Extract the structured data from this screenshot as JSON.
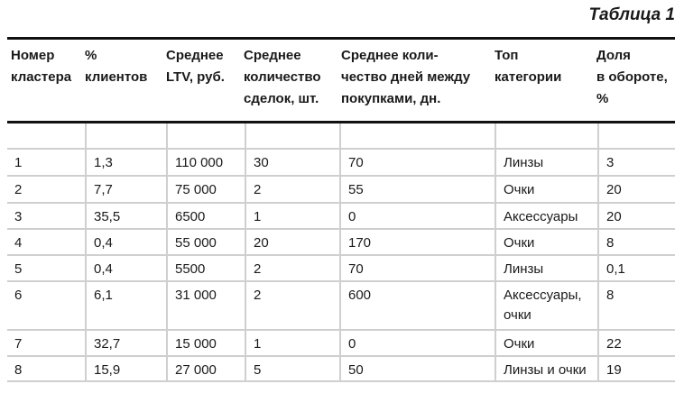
{
  "caption": "Таблица 1",
  "headers": [
    "Номер\nкластера",
    "%\nклиентов",
    "Среднее\nLTV, руб.",
    "Среднее\nколичество\nсделок, шт.",
    "Среднее коли-\nчество дней между\nпокупками, дн.",
    "Топ\nкатегории",
    "Доля\nв обороте,\n%"
  ],
  "rows": [
    [
      "",
      "",
      "",
      "",
      "",
      "",
      ""
    ],
    [
      "1",
      "1,3",
      "110 000",
      "30",
      "70",
      "Линзы",
      "3"
    ],
    [
      "2",
      "7,7",
      "75 000",
      "2",
      "55",
      "Очки",
      "20"
    ],
    [
      "3",
      "35,5",
      "6500",
      "1",
      "0",
      "Аксессуары",
      "20"
    ],
    [
      "4",
      "0,4",
      "55 000",
      "20",
      "170",
      "Очки",
      "8"
    ],
    [
      "5",
      "0,4",
      "5500",
      "2",
      "70",
      "Линзы",
      "0,1"
    ],
    [
      "6",
      "6,1",
      "31 000",
      "2",
      "600",
      "Аксессуары,\nочки",
      "8"
    ],
    [
      "7",
      "32,7",
      "15 000",
      "1",
      "0",
      "Очки",
      "22"
    ],
    [
      "8",
      "15,9",
      "27 000",
      "5",
      "50",
      "Линзы и очки",
      "19"
    ]
  ]
}
